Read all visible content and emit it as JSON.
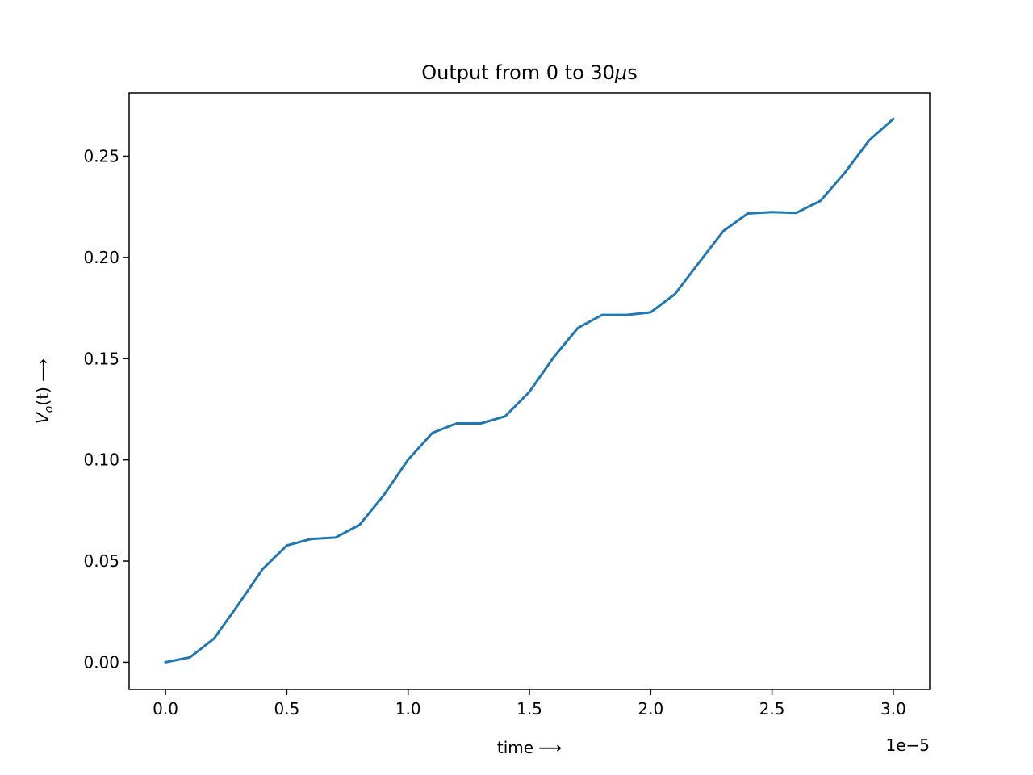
{
  "chart_data": {
    "type": "line",
    "title_pre": "Output from 0 to 30",
    "title_mu": "μ",
    "title_post": "s",
    "xlabel": "time  ⟶",
    "ylabel_V": "V",
    "ylabel_sub": "o",
    "ylabel_rest": "(t) ⟶",
    "x_offset_label": "1e−5",
    "xlim": [
      -1.5e-06,
      3.15e-05
    ],
    "ylim": [
      -0.0134,
      0.2813
    ],
    "x_ticks": [
      0,
      5e-06,
      1e-05,
      1.5e-05,
      2e-05,
      2.5e-05,
      3e-05
    ],
    "x_tick_labels": [
      "0.0",
      "0.5",
      "1.0",
      "1.5",
      "2.0",
      "2.5",
      "3.0"
    ],
    "y_ticks": [
      0,
      0.05,
      0.1,
      0.15,
      0.2,
      0.25
    ],
    "y_tick_labels": [
      "0.00",
      "0.05",
      "0.10",
      "0.15",
      "0.20",
      "0.25"
    ],
    "grid": false,
    "colors": {
      "line": "#1f77b4",
      "axes": "#000000"
    },
    "series": [
      {
        "x": [
          0,
          1e-06,
          2e-06,
          3e-06,
          4e-06,
          5e-06,
          6e-06,
          7e-06,
          8e-06,
          9e-06,
          1e-05,
          1.1e-05,
          1.2e-05,
          1.3e-05,
          1.4e-05,
          1.5e-05,
          1.6e-05,
          1.7e-05,
          1.8e-05,
          1.9e-05,
          2e-05,
          2.1e-05,
          2.2e-05,
          2.3e-05,
          2.4e-05,
          2.5e-05,
          2.6e-05,
          2.7e-05,
          2.8e-05,
          2.9e-05,
          3e-05
        ],
        "y": [
          0.0,
          0.0024,
          0.0117,
          0.0285,
          0.046,
          0.0577,
          0.0609,
          0.0616,
          0.0679,
          0.0826,
          0.1001,
          0.1133,
          0.118,
          0.118,
          0.1215,
          0.1336,
          0.1507,
          0.1652,
          0.1716,
          0.1716,
          0.1729,
          0.1819,
          0.1976,
          0.2131,
          0.2217,
          0.2224,
          0.222,
          0.228,
          0.2418,
          0.2578,
          0.2684
        ]
      }
    ]
  }
}
